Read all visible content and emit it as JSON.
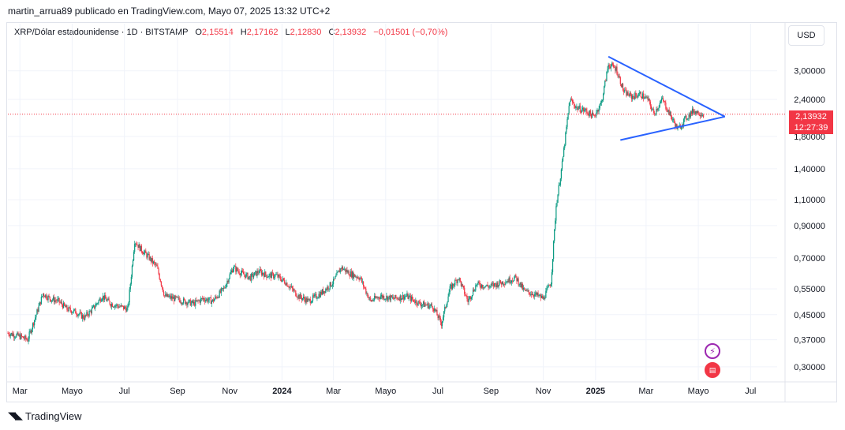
{
  "header": {
    "published": "martin_arrua89 publicado en TradingView.com, Mayo 07, 2025 13:32 UTC+2"
  },
  "legend": {
    "symbol": "XRP/Dólar estadounidense · 1D · BITSTAMP",
    "o_label": "O",
    "o": "2,15514",
    "h_label": "H",
    "h": "2,17162",
    "l_label": "L",
    "l": "2,12830",
    "c_label": "C",
    "c": "2,13932",
    "change": "−0,01501 (−0,70%)"
  },
  "currency_button": "USD",
  "price_tag": {
    "price": "2,13932",
    "countdown": "12:27:39"
  },
  "brand": "TradingView",
  "colors": {
    "up": "#089981",
    "down": "#f23645",
    "trendline": "#2962ff"
  },
  "chart_data": {
    "type": "candlestick",
    "y_scale": "log",
    "y_ticks": [
      "3,00000",
      "2,40000",
      "1,80000",
      "1,40000",
      "1,10000",
      "0,90000",
      "0,70000",
      "0,55000",
      "0,45000",
      "0,37000",
      "0,30000"
    ],
    "y_values": [
      3.0,
      2.4,
      1.8,
      1.4,
      1.1,
      0.9,
      0.7,
      0.55,
      0.45,
      0.37,
      0.3
    ],
    "x_ticks": [
      "Mar",
      "Mayo",
      "Jul",
      "Sep",
      "Nov",
      "2024",
      "Mar",
      "Mayo",
      "Jul",
      "Sep",
      "Nov",
      "2025",
      "Mar",
      "Mayo",
      "Jul"
    ],
    "x_tick_dates": [
      "2023-03-01",
      "2023-05-01",
      "2023-07-01",
      "2023-09-01",
      "2023-11-01",
      "2024-01-01",
      "2024-03-01",
      "2024-05-01",
      "2024-07-01",
      "2024-09-01",
      "2024-11-01",
      "2025-01-01",
      "2025-03-01",
      "2025-05-01",
      "2025-07-01"
    ],
    "x_range": [
      "2023-02-15",
      "2025-08-01"
    ],
    "y_range": [
      0.27,
      3.6
    ],
    "last_price": 2.13932,
    "series": [
      {
        "name": "XRP/Dólar estadounidense",
        "points": [
          [
            "2023-02-15",
            0.39
          ],
          [
            "2023-03-01",
            0.38
          ],
          [
            "2023-03-10",
            0.37
          ],
          [
            "2023-03-20",
            0.45
          ],
          [
            "2023-03-28",
            0.53
          ],
          [
            "2023-04-05",
            0.51
          ],
          [
            "2023-04-15",
            0.5
          ],
          [
            "2023-04-25",
            0.47
          ],
          [
            "2023-05-05",
            0.46
          ],
          [
            "2023-05-15",
            0.44
          ],
          [
            "2023-05-25",
            0.47
          ],
          [
            "2023-06-05",
            0.52
          ],
          [
            "2023-06-15",
            0.49
          ],
          [
            "2023-06-25",
            0.48
          ],
          [
            "2023-07-05",
            0.47
          ],
          [
            "2023-07-13",
            0.8
          ],
          [
            "2023-07-20",
            0.75
          ],
          [
            "2023-07-30",
            0.7
          ],
          [
            "2023-08-08",
            0.65
          ],
          [
            "2023-08-17",
            0.52
          ],
          [
            "2023-08-28",
            0.51
          ],
          [
            "2023-09-08",
            0.5
          ],
          [
            "2023-09-20",
            0.49
          ],
          [
            "2023-10-01",
            0.51
          ],
          [
            "2023-10-12",
            0.5
          ],
          [
            "2023-10-25",
            0.55
          ],
          [
            "2023-11-05",
            0.65
          ],
          [
            "2023-11-15",
            0.62
          ],
          [
            "2023-11-25",
            0.6
          ],
          [
            "2023-12-05",
            0.63
          ],
          [
            "2023-12-15",
            0.61
          ],
          [
            "2023-12-25",
            0.61
          ],
          [
            "2024-01-05",
            0.58
          ],
          [
            "2024-01-20",
            0.52
          ],
          [
            "2024-02-01",
            0.5
          ],
          [
            "2024-02-15",
            0.53
          ],
          [
            "2024-03-01",
            0.58
          ],
          [
            "2024-03-10",
            0.65
          ],
          [
            "2024-03-20",
            0.62
          ],
          [
            "2024-04-01",
            0.6
          ],
          [
            "2024-04-13",
            0.5
          ],
          [
            "2024-04-25",
            0.52
          ],
          [
            "2024-05-10",
            0.51
          ],
          [
            "2024-05-25",
            0.52
          ],
          [
            "2024-06-10",
            0.49
          ],
          [
            "2024-06-25",
            0.48
          ],
          [
            "2024-07-05",
            0.42
          ],
          [
            "2024-07-15",
            0.55
          ],
          [
            "2024-07-25",
            0.6
          ],
          [
            "2024-08-05",
            0.5
          ],
          [
            "2024-08-15",
            0.57
          ],
          [
            "2024-08-30",
            0.56
          ],
          [
            "2024-09-15",
            0.58
          ],
          [
            "2024-09-30",
            0.6
          ],
          [
            "2024-10-10",
            0.54
          ],
          [
            "2024-10-20",
            0.53
          ],
          [
            "2024-11-01",
            0.51
          ],
          [
            "2024-11-10",
            0.58
          ],
          [
            "2024-11-16",
            1.05
          ],
          [
            "2024-11-23",
            1.45
          ],
          [
            "2024-12-02",
            2.4
          ],
          [
            "2024-12-10",
            2.25
          ],
          [
            "2024-12-20",
            2.2
          ],
          [
            "2024-12-30",
            2.1
          ],
          [
            "2025-01-08",
            2.35
          ],
          [
            "2025-01-16",
            3.15
          ],
          [
            "2025-01-25",
            3.05
          ],
          [
            "2025-02-03",
            2.55
          ],
          [
            "2025-02-12",
            2.45
          ],
          [
            "2025-02-22",
            2.5
          ],
          [
            "2025-03-03",
            2.4
          ],
          [
            "2025-03-10",
            2.15
          ],
          [
            "2025-03-20",
            2.4
          ],
          [
            "2025-04-01",
            2.05
          ],
          [
            "2025-04-07",
            1.9
          ],
          [
            "2025-04-15",
            2.05
          ],
          [
            "2025-04-25",
            2.2
          ],
          [
            "2025-05-07",
            2.14
          ]
        ]
      }
    ],
    "trendlines": [
      {
        "from": [
          "2025-01-16",
          3.35
        ],
        "to": [
          "2025-06-01",
          2.1
        ]
      },
      {
        "from": [
          "2025-01-30",
          1.75
        ],
        "to": [
          "2025-06-01",
          2.1
        ]
      }
    ]
  }
}
